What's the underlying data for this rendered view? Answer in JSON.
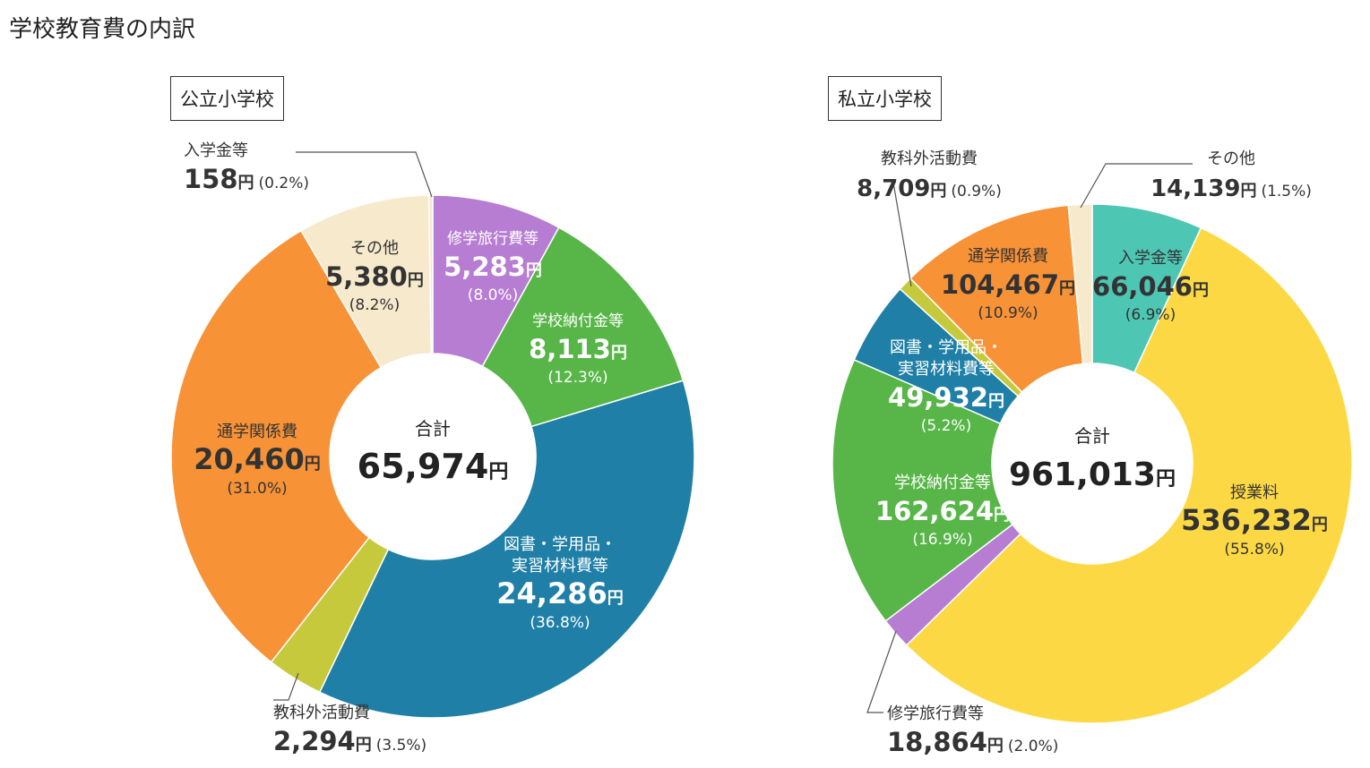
{
  "page_title": "学校教育費の内訳",
  "yen": "円",
  "total_label": "合計",
  "chart_data": [
    {
      "type": "pie",
      "title": "公立小学校",
      "total": 65974,
      "total_text": "65,974",
      "slices": [
        {
          "name": "修学旅行費等",
          "value": 5283,
          "value_text": "5,283",
          "percent": "(8.0%)",
          "color": "#b77dd3"
        },
        {
          "name": "学校納付金等",
          "value": 8113,
          "value_text": "8,113",
          "percent": "(12.3%)",
          "color": "#57b647"
        },
        {
          "name": "図書・学用品・実習材料費等",
          "value": 24286,
          "value_text": "24,286",
          "percent": "(36.8%)",
          "color": "#1f7fa6"
        },
        {
          "name": "教科外活動費",
          "value": 2294,
          "value_text": "2,294",
          "percent": "(3.5%)",
          "color": "#c6c93c"
        },
        {
          "name": "通学関係費",
          "value": 20460,
          "value_text": "20,460",
          "percent": "(31.0%)",
          "color": "#f79237"
        },
        {
          "name": "その他",
          "value": 5380,
          "value_text": "5,380",
          "percent": "(8.2%)",
          "color": "#f6e9cc"
        },
        {
          "name": "入学金等",
          "value": 158,
          "value_text": "158",
          "percent": "(0.2%)",
          "color": "#f6e9cc"
        }
      ]
    },
    {
      "type": "pie",
      "title": "私立小学校",
      "total": 961013,
      "total_text": "961,013",
      "slices": [
        {
          "name": "入学金等",
          "value": 66046,
          "value_text": "66,046",
          "percent": "(6.9%)",
          "color": "#4ec6b4"
        },
        {
          "name": "授業料",
          "value": 536232,
          "value_text": "536,232",
          "percent": "(55.8%)",
          "color": "#fcd944"
        },
        {
          "name": "修学旅行費等",
          "value": 18864,
          "value_text": "18,864",
          "percent": "(2.0%)",
          "color": "#b77dd3"
        },
        {
          "name": "学校納付金等",
          "value": 162624,
          "value_text": "162,624",
          "percent": "(16.9%)",
          "color": "#57b647"
        },
        {
          "name": "図書・学用品・実習材料費等",
          "value": 49932,
          "value_text": "49,932",
          "percent": "(5.2%)",
          "color": "#1f7fa6"
        },
        {
          "name": "教科外活動費",
          "value": 8709,
          "value_text": "8,709",
          "percent": "(0.9%)",
          "color": "#c6c93c"
        },
        {
          "name": "通学関係費",
          "value": 104467,
          "value_text": "104,467",
          "percent": "(10.9%)",
          "color": "#f79237"
        },
        {
          "name": "その他",
          "value": 14139,
          "value_text": "14,139",
          "percent": "(1.5%)",
          "color": "#f6e9cc"
        }
      ]
    }
  ]
}
